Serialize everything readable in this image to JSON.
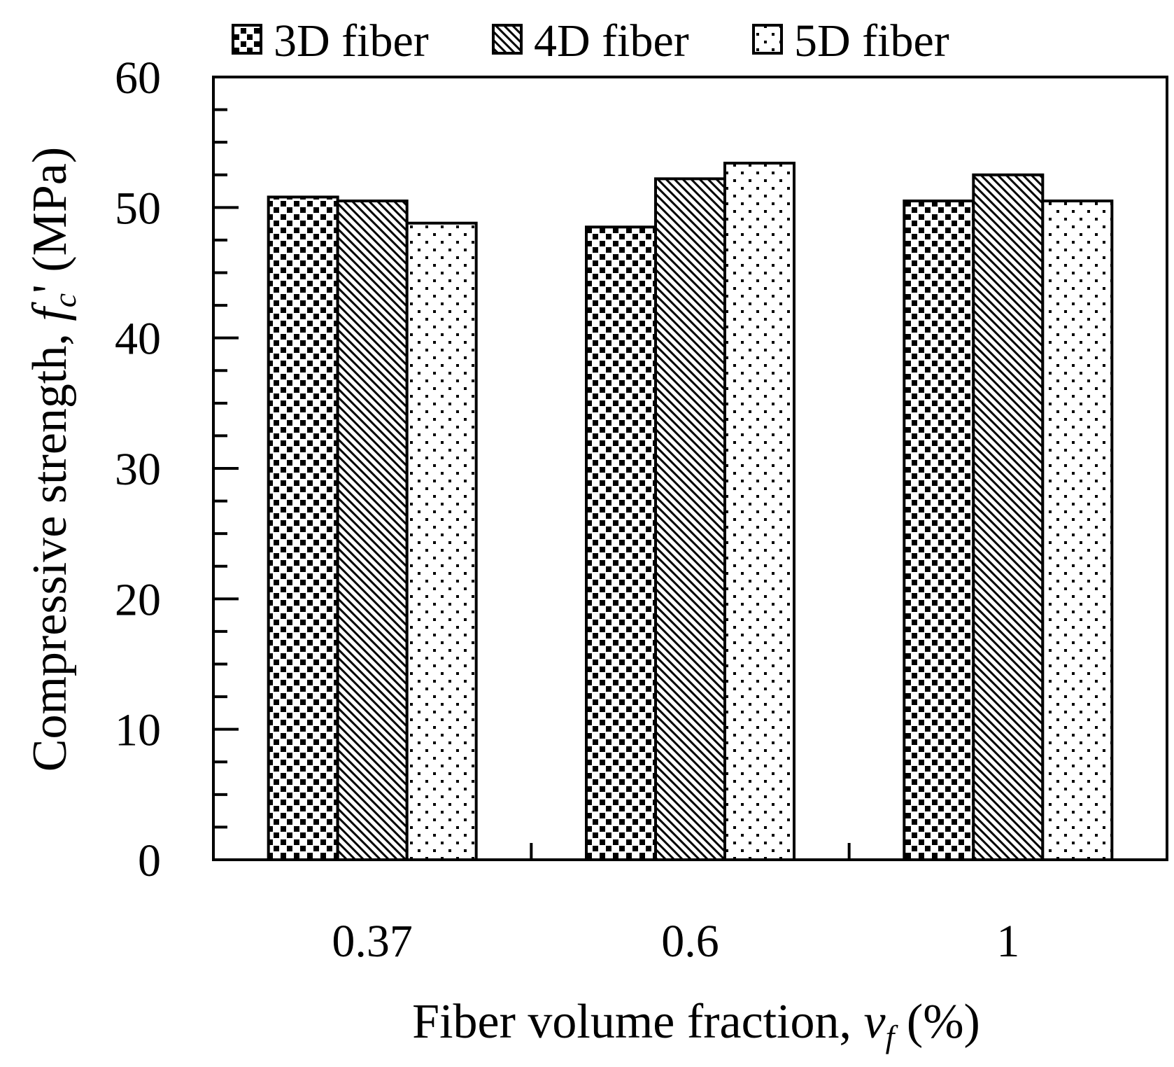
{
  "chart_data": {
    "type": "bar",
    "categories": [
      "0.37",
      "0.6",
      "1"
    ],
    "series": [
      {
        "name": "3D fiber",
        "values": [
          50.8,
          48.5,
          50.5
        ],
        "pattern": "checker"
      },
      {
        "name": "4D fiber",
        "values": [
          50.5,
          52.2,
          52.5
        ],
        "pattern": "diagonal"
      },
      {
        "name": "5D fiber",
        "values": [
          48.8,
          53.4,
          50.5
        ],
        "pattern": "dots"
      }
    ],
    "title": "",
    "xlabel": {
      "prefix": "Fiber volume fraction, ",
      "symbol": "v",
      "subscript": "f",
      "suffix": " (%)"
    },
    "ylabel": {
      "prefix": "Compressive strength, ",
      "symbol": "f",
      "subscript": "c",
      "prime": "'",
      "suffix": " (MPa)"
    },
    "ylim": [
      0,
      60
    ],
    "yticks": [
      0,
      10,
      20,
      30,
      40,
      50,
      60
    ],
    "yminor_step": 2.5,
    "grid": false,
    "legend_position": "top",
    "colors": {
      "bar_fill": "#ffffff",
      "stroke": "#000000"
    }
  }
}
